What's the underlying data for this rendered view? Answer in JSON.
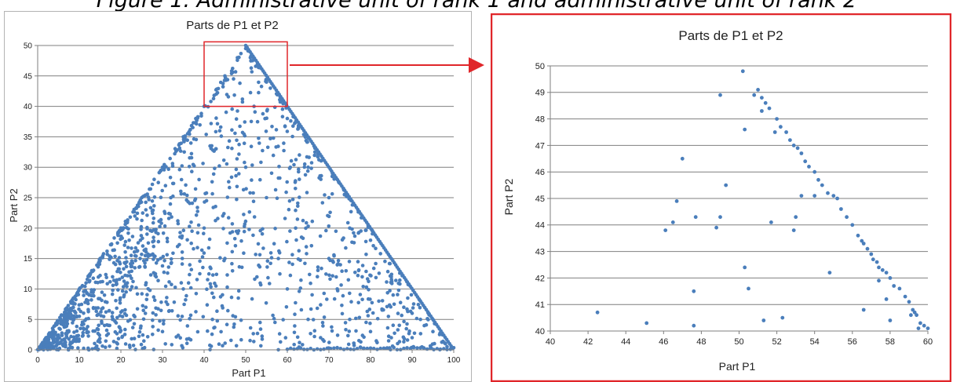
{
  "figure_caption": "Figure 1. Administrative unit of rank 1 and administrative unit of rank 2",
  "colors": {
    "marker": "#4a7ebb",
    "highlight": "#e0262a",
    "grid": "#7f7f7f",
    "frame_left": "#b3b3b3"
  },
  "chart_data": [
    {
      "type": "scatter",
      "title": "Parts de P1 et P2",
      "xlabel": "Part P1",
      "ylabel": "Part P2",
      "xlim": [
        0,
        100
      ],
      "ylim": [
        0,
        50
      ],
      "xticks": [
        "0",
        "10",
        "20",
        "30",
        "40",
        "50",
        "60",
        "70",
        "80",
        "90",
        "100"
      ],
      "yticks": [
        "0",
        "5",
        "10",
        "15",
        "20",
        "25",
        "30",
        "35",
        "40",
        "45",
        "50"
      ],
      "grid": "horizontal",
      "constraint_note_visible": false,
      "sample_points": [
        [
          2,
          2
        ],
        [
          7,
          6.5
        ],
        [
          10,
          5.5
        ],
        [
          10,
          10
        ],
        [
          13,
          13
        ],
        [
          15,
          15
        ],
        [
          18,
          12
        ],
        [
          20,
          20
        ],
        [
          22,
          18
        ],
        [
          25,
          25
        ],
        [
          26,
          23
        ],
        [
          28,
          28
        ],
        [
          30,
          30
        ],
        [
          30,
          3
        ],
        [
          32,
          25
        ],
        [
          35,
          35
        ],
        [
          35,
          10
        ],
        [
          38,
          38
        ],
        [
          40,
          40
        ],
        [
          40,
          20
        ],
        [
          42,
          5
        ],
        [
          45,
          45
        ],
        [
          45,
          15
        ],
        [
          48,
          48
        ],
        [
          50,
          49.5
        ],
        [
          50,
          30
        ],
        [
          52,
          40
        ],
        [
          55,
          44
        ],
        [
          55,
          25
        ],
        [
          58,
          42
        ],
        [
          60,
          38
        ],
        [
          60,
          10
        ],
        [
          62,
          20
        ],
        [
          65,
          30
        ],
        [
          65,
          5
        ],
        [
          68,
          2
        ],
        [
          70,
          25
        ],
        [
          70,
          15
        ],
        [
          72,
          10
        ],
        [
          75,
          20
        ],
        [
          75,
          5
        ],
        [
          78,
          12
        ],
        [
          80,
          18
        ],
        [
          80,
          3
        ],
        [
          82,
          8
        ],
        [
          85,
          12
        ],
        [
          85,
          2
        ],
        [
          88,
          7
        ],
        [
          90,
          6
        ],
        [
          90,
          2
        ],
        [
          92,
          5
        ],
        [
          95,
          3
        ],
        [
          98,
          1
        ]
      ],
      "random_fill": {
        "count": 1500,
        "seed": 7,
        "region": "triangle",
        "bias_toward_x": 100
      }
    },
    {
      "type": "scatter",
      "title": "Parts de P1 et P2",
      "xlabel": "Part P1",
      "ylabel": "Part P2",
      "xlim": [
        40,
        60
      ],
      "ylim": [
        40,
        50
      ],
      "xticks": [
        "40",
        "42",
        "44",
        "46",
        "48",
        "50",
        "52",
        "54",
        "56",
        "58",
        "60"
      ],
      "yticks": [
        "40",
        "41",
        "42",
        "43",
        "44",
        "45",
        "46",
        "47",
        "48",
        "49",
        "50"
      ],
      "grid": "horizontal",
      "points": [
        [
          50.2,
          49.8
        ],
        [
          50.8,
          48.9
        ],
        [
          51.0,
          49.1
        ],
        [
          51.2,
          48.8
        ],
        [
          51.4,
          48.6
        ],
        [
          51.6,
          48.4
        ],
        [
          51.2,
          48.3
        ],
        [
          50.3,
          47.6
        ],
        [
          52.0,
          48.0
        ],
        [
          52.2,
          47.7
        ],
        [
          51.9,
          47.5
        ],
        [
          52.5,
          47.5
        ],
        [
          52.7,
          47.2
        ],
        [
          52.9,
          47.0
        ],
        [
          53.1,
          46.9
        ],
        [
          53.3,
          46.7
        ],
        [
          53.5,
          46.4
        ],
        [
          53.7,
          46.2
        ],
        [
          54.0,
          46.0
        ],
        [
          54.2,
          45.7
        ],
        [
          54.4,
          45.5
        ],
        [
          54.7,
          45.2
        ],
        [
          55.0,
          45.1
        ],
        [
          55.2,
          45.0
        ],
        [
          55.4,
          44.6
        ],
        [
          55.7,
          44.3
        ],
        [
          56.0,
          44.0
        ],
        [
          56.3,
          43.6
        ],
        [
          56.5,
          43.4
        ],
        [
          56.6,
          43.3
        ],
        [
          56.8,
          43.1
        ],
        [
          57.0,
          42.9
        ],
        [
          57.1,
          42.7
        ],
        [
          57.3,
          42.6
        ],
        [
          57.4,
          42.4
        ],
        [
          57.6,
          42.3
        ],
        [
          57.8,
          42.2
        ],
        [
          58.0,
          42.0
        ],
        [
          58.2,
          41.7
        ],
        [
          58.5,
          41.6
        ],
        [
          58.8,
          41.3
        ],
        [
          59.0,
          41.1
        ],
        [
          59.2,
          40.8
        ],
        [
          59.3,
          40.7
        ],
        [
          59.4,
          40.6
        ],
        [
          59.6,
          40.3
        ],
        [
          59.8,
          40.2
        ],
        [
          60.0,
          40.1
        ],
        [
          59.1,
          40.6
        ],
        [
          59.5,
          40.1
        ],
        [
          42.5,
          40.7
        ],
        [
          45.1,
          40.3
        ],
        [
          47.6,
          40.2
        ],
        [
          47.6,
          41.5
        ],
        [
          47.7,
          44.3
        ],
        [
          46.1,
          43.8
        ],
        [
          46.5,
          44.1
        ],
        [
          46.7,
          44.9
        ],
        [
          47.0,
          46.5
        ],
        [
          48.8,
          43.9
        ],
        [
          49.0,
          44.3
        ],
        [
          49.0,
          48.9
        ],
        [
          49.3,
          45.5
        ],
        [
          50.3,
          42.4
        ],
        [
          50.5,
          41.6
        ],
        [
          51.3,
          40.4
        ],
        [
          51.7,
          44.1
        ],
        [
          52.3,
          40.5
        ],
        [
          52.9,
          43.8
        ],
        [
          53.0,
          44.3
        ],
        [
          53.3,
          45.1
        ],
        [
          54.0,
          45.1
        ],
        [
          54.8,
          42.2
        ],
        [
          56.6,
          40.8
        ],
        [
          57.4,
          41.9
        ],
        [
          57.8,
          41.2
        ],
        [
          58.0,
          40.4
        ]
      ]
    }
  ]
}
